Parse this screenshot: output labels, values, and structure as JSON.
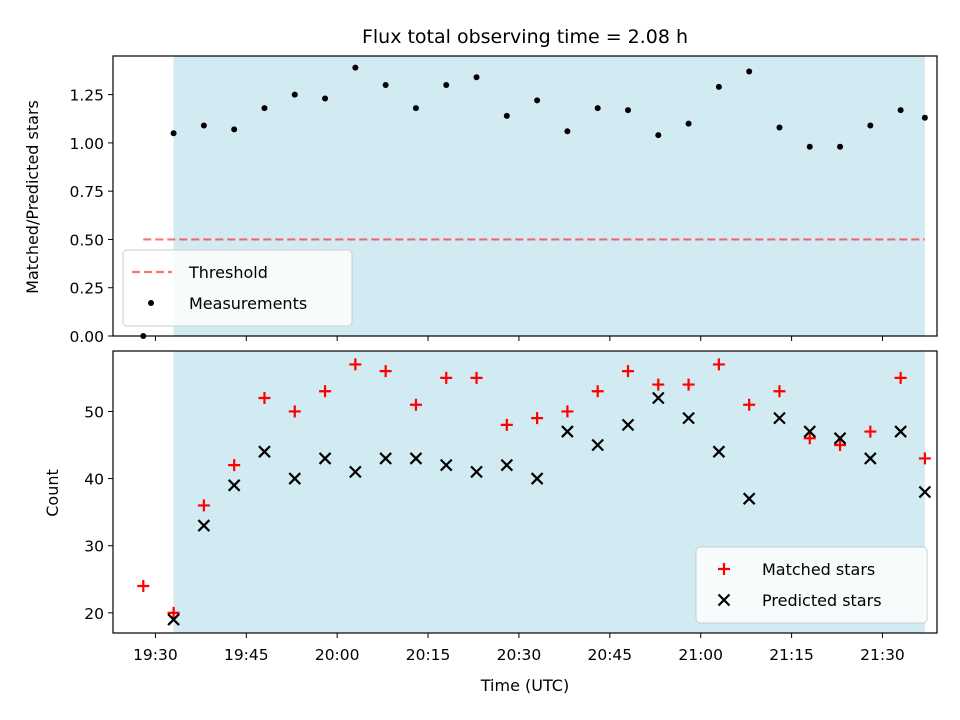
{
  "title": "Flux total observing time = 2.08 h",
  "colors": {
    "span": "#add8e6",
    "threshold": "#ff0000",
    "measurement": "#000000",
    "matched": "#ff0000",
    "predicted": "#000000"
  },
  "chart_data": [
    {
      "type": "scatter",
      "ylabel": "Matched/Predicted stars",
      "ylim": [
        0,
        1.45
      ],
      "yticks": [
        "0.00",
        "0.25",
        "0.50",
        "0.75",
        "1.00",
        "1.25"
      ],
      "xlim": [
        "19:23",
        "21:39"
      ],
      "shaded_span": [
        "19:33",
        "21:37"
      ],
      "legend_position": "lower-left",
      "threshold": {
        "name": "Threshold",
        "value": 0.5,
        "x": [
          "19:28",
          "21:37"
        ],
        "style": "dashed"
      },
      "series": [
        {
          "name": "Measurements",
          "marker": "dot",
          "points": [
            [
              "19:28",
              0.0
            ],
            [
              "19:33",
              1.05
            ],
            [
              "19:38",
              1.09
            ],
            [
              "19:43",
              1.07
            ],
            [
              "19:48",
              1.18
            ],
            [
              "19:53",
              1.25
            ],
            [
              "19:58",
              1.23
            ],
            [
              "20:03",
              1.39
            ],
            [
              "20:08",
              1.3
            ],
            [
              "20:13",
              1.18
            ],
            [
              "20:18",
              1.3
            ],
            [
              "20:23",
              1.34
            ],
            [
              "20:28",
              1.14
            ],
            [
              "20:33",
              1.22
            ],
            [
              "20:38",
              1.06
            ],
            [
              "20:43",
              1.18
            ],
            [
              "20:48",
              1.17
            ],
            [
              "20:53",
              1.04
            ],
            [
              "20:58",
              1.1
            ],
            [
              "21:03",
              1.29
            ],
            [
              "21:08",
              1.37
            ],
            [
              "21:13",
              1.08
            ],
            [
              "21:18",
              0.98
            ],
            [
              "21:23",
              0.98
            ],
            [
              "21:28",
              1.09
            ],
            [
              "21:33",
              1.17
            ],
            [
              "21:37",
              1.13
            ]
          ]
        }
      ]
    },
    {
      "type": "scatter",
      "ylabel": "Count",
      "xlabel": "Time (UTC)",
      "ylim": [
        17,
        59
      ],
      "yticks": [
        "20",
        "30",
        "40",
        "50"
      ],
      "xlim": [
        "19:23",
        "21:39"
      ],
      "xticks": [
        "19:30",
        "19:45",
        "20:00",
        "20:15",
        "20:30",
        "20:45",
        "21:00",
        "21:15",
        "21:30"
      ],
      "shaded_span": [
        "19:33",
        "21:37"
      ],
      "legend_position": "lower-right",
      "series": [
        {
          "name": "Matched stars",
          "marker": "plus",
          "points": [
            [
              "19:28",
              24
            ],
            [
              "19:33",
              20
            ],
            [
              "19:38",
              36
            ],
            [
              "19:43",
              42
            ],
            [
              "19:48",
              52
            ],
            [
              "19:53",
              50
            ],
            [
              "19:58",
              53
            ],
            [
              "20:03",
              57
            ],
            [
              "20:08",
              56
            ],
            [
              "20:13",
              51
            ],
            [
              "20:18",
              55
            ],
            [
              "20:23",
              55
            ],
            [
              "20:28",
              48
            ],
            [
              "20:33",
              49
            ],
            [
              "20:38",
              50
            ],
            [
              "20:43",
              53
            ],
            [
              "20:48",
              56
            ],
            [
              "20:53",
              54
            ],
            [
              "20:58",
              54
            ],
            [
              "21:03",
              57
            ],
            [
              "21:08",
              51
            ],
            [
              "21:13",
              53
            ],
            [
              "21:18",
              46
            ],
            [
              "21:23",
              45
            ],
            [
              "21:28",
              47
            ],
            [
              "21:33",
              55
            ],
            [
              "21:37",
              43
            ]
          ]
        },
        {
          "name": "Predicted stars",
          "marker": "x",
          "points": [
            [
              "19:33",
              19
            ],
            [
              "19:38",
              33
            ],
            [
              "19:43",
              39
            ],
            [
              "19:48",
              44
            ],
            [
              "19:53",
              40
            ],
            [
              "19:58",
              43
            ],
            [
              "20:03",
              41
            ],
            [
              "20:08",
              43
            ],
            [
              "20:13",
              43
            ],
            [
              "20:18",
              42
            ],
            [
              "20:23",
              41
            ],
            [
              "20:28",
              42
            ],
            [
              "20:33",
              40
            ],
            [
              "20:38",
              47
            ],
            [
              "20:43",
              45
            ],
            [
              "20:48",
              48
            ],
            [
              "20:53",
              52
            ],
            [
              "20:58",
              49
            ],
            [
              "21:03",
              44
            ],
            [
              "21:08",
              37
            ],
            [
              "21:13",
              49
            ],
            [
              "21:18",
              47
            ],
            [
              "21:23",
              46
            ],
            [
              "21:28",
              43
            ],
            [
              "21:33",
              47
            ],
            [
              "21:37",
              38
            ]
          ]
        }
      ]
    }
  ]
}
